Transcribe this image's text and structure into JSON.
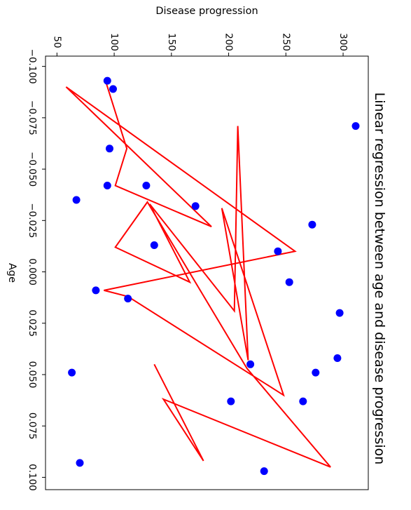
{
  "chart_data": {
    "type": "scatter",
    "title": "Linear regression between age and disease progression",
    "xlabel": "Age",
    "ylabel": "Disease progression",
    "xlim": [
      -0.105,
      0.106
    ],
    "ylim": [
      40,
      322
    ],
    "x_ticks": [
      -0.1,
      -0.075,
      -0.05,
      -0.025,
      0.0,
      0.025,
      0.05,
      0.075,
      0.1
    ],
    "x_tick_labels": [
      "−0.100",
      "−0.075",
      "−0.050",
      "−0.025",
      "0.000",
      "0.025",
      "0.050",
      "0.075",
      "0.100"
    ],
    "y_ticks": [
      50,
      100,
      150,
      200,
      250,
      300
    ],
    "y_tick_labels": [
      "50",
      "100",
      "150",
      "200",
      "250",
      "300"
    ],
    "grid": false,
    "rotated_90": true,
    "series": [
      {
        "kind": "scatter",
        "color": "#0000ff",
        "points": [
          [
            -0.093,
            94
          ],
          [
            -0.089,
            99
          ],
          [
            -0.071,
            311
          ],
          [
            -0.06,
            96
          ],
          [
            -0.042,
            94
          ],
          [
            -0.042,
            128
          ],
          [
            -0.035,
            67
          ],
          [
            -0.032,
            171
          ],
          [
            -0.023,
            273
          ],
          [
            -0.013,
            135
          ],
          [
            -0.01,
            243
          ],
          [
            0.005,
            253
          ],
          [
            0.009,
            84
          ],
          [
            0.013,
            112
          ],
          [
            0.02,
            297
          ],
          [
            0.042,
            295
          ],
          [
            0.045,
            219
          ],
          [
            0.049,
            276
          ],
          [
            0.049,
            63
          ],
          [
            0.063,
            202
          ],
          [
            0.063,
            265
          ],
          [
            0.093,
            70
          ],
          [
            0.097,
            231
          ]
        ]
      },
      {
        "kind": "line",
        "color": "#ff0000",
        "points": [
          [
            -0.092,
            93
          ],
          [
            -0.06,
            111
          ],
          [
            -0.042,
            101
          ],
          [
            -0.022,
            185
          ],
          [
            -0.09,
            58
          ],
          [
            -0.01,
            258
          ],
          [
            0.009,
            91
          ],
          [
            0.012,
            112
          ],
          [
            0.06,
            248
          ],
          [
            -0.031,
            194
          ],
          [
            0.043,
            217
          ],
          [
            -0.071,
            208
          ],
          [
            0.019,
            205
          ],
          [
            -0.033,
            131
          ],
          [
            0.005,
            166
          ],
          [
            -0.012,
            101
          ],
          [
            -0.034,
            129
          ],
          [
            0.047,
            216
          ],
          [
            0.095,
            289
          ],
          [
            0.062,
            143
          ],
          [
            0.092,
            178
          ],
          [
            0.045,
            135
          ]
        ]
      }
    ]
  }
}
